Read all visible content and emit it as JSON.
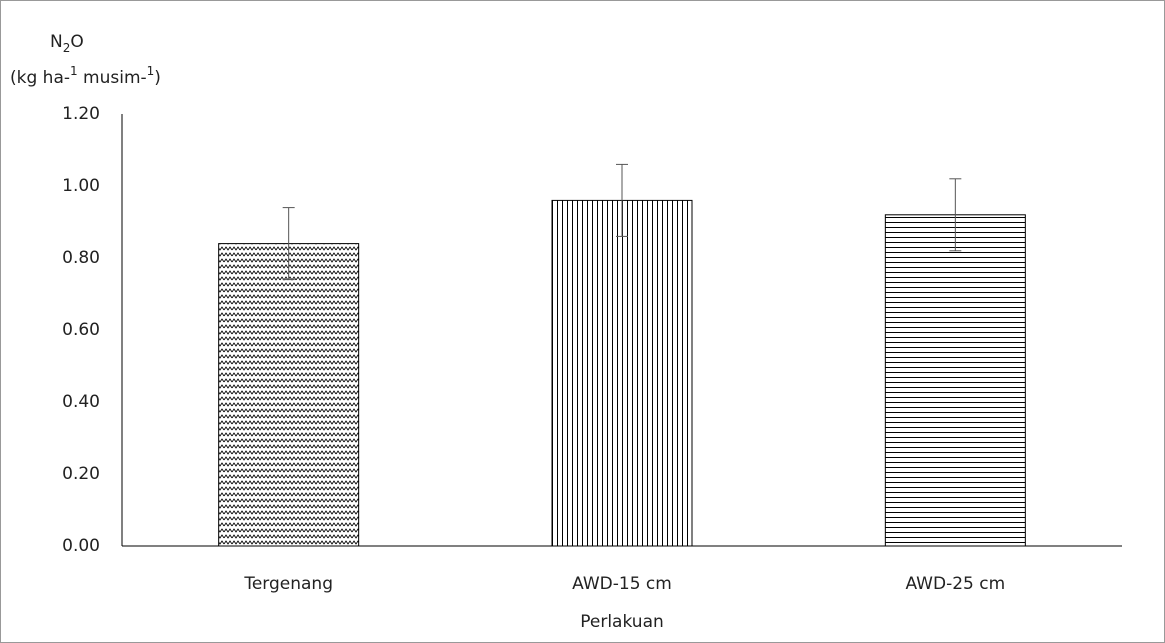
{
  "chart_data": {
    "type": "bar",
    "y_label": [
      [
        {
          "text": "N"
        },
        {
          "text": "2",
          "shift": "sub"
        },
        {
          "text": "O"
        }
      ],
      [
        {
          "text": "(kg ha-"
        },
        {
          "text": "1",
          "shift": "super"
        },
        {
          "text": " musim-"
        },
        {
          "text": "1",
          "shift": "super"
        },
        {
          "text": ")"
        }
      ]
    ],
    "x_label": "Perlakuan",
    "categories": [
      "Tergenang",
      "AWD-15 cm",
      "AWD-25 cm"
    ],
    "values": [
      0.84,
      0.96,
      0.92
    ],
    "errors": [
      0.1,
      0.1,
      0.1
    ],
    "patterns": [
      "zigzag",
      "vertical",
      "horizontal"
    ],
    "color": "#000000",
    "ylim": [
      0,
      1.2
    ],
    "yticks": [
      {
        "value": 0,
        "label": "0.00"
      },
      {
        "value": 0.2,
        "label": "0.20"
      },
      {
        "value": 0.4,
        "label": "0.40"
      },
      {
        "value": 0.6,
        "label": "0.60"
      },
      {
        "value": 0.8,
        "label": "0.80"
      },
      {
        "value": 1.0,
        "label": "1.00"
      },
      {
        "value": 1.2,
        "label": "1.20"
      }
    ],
    "grid": false
  }
}
